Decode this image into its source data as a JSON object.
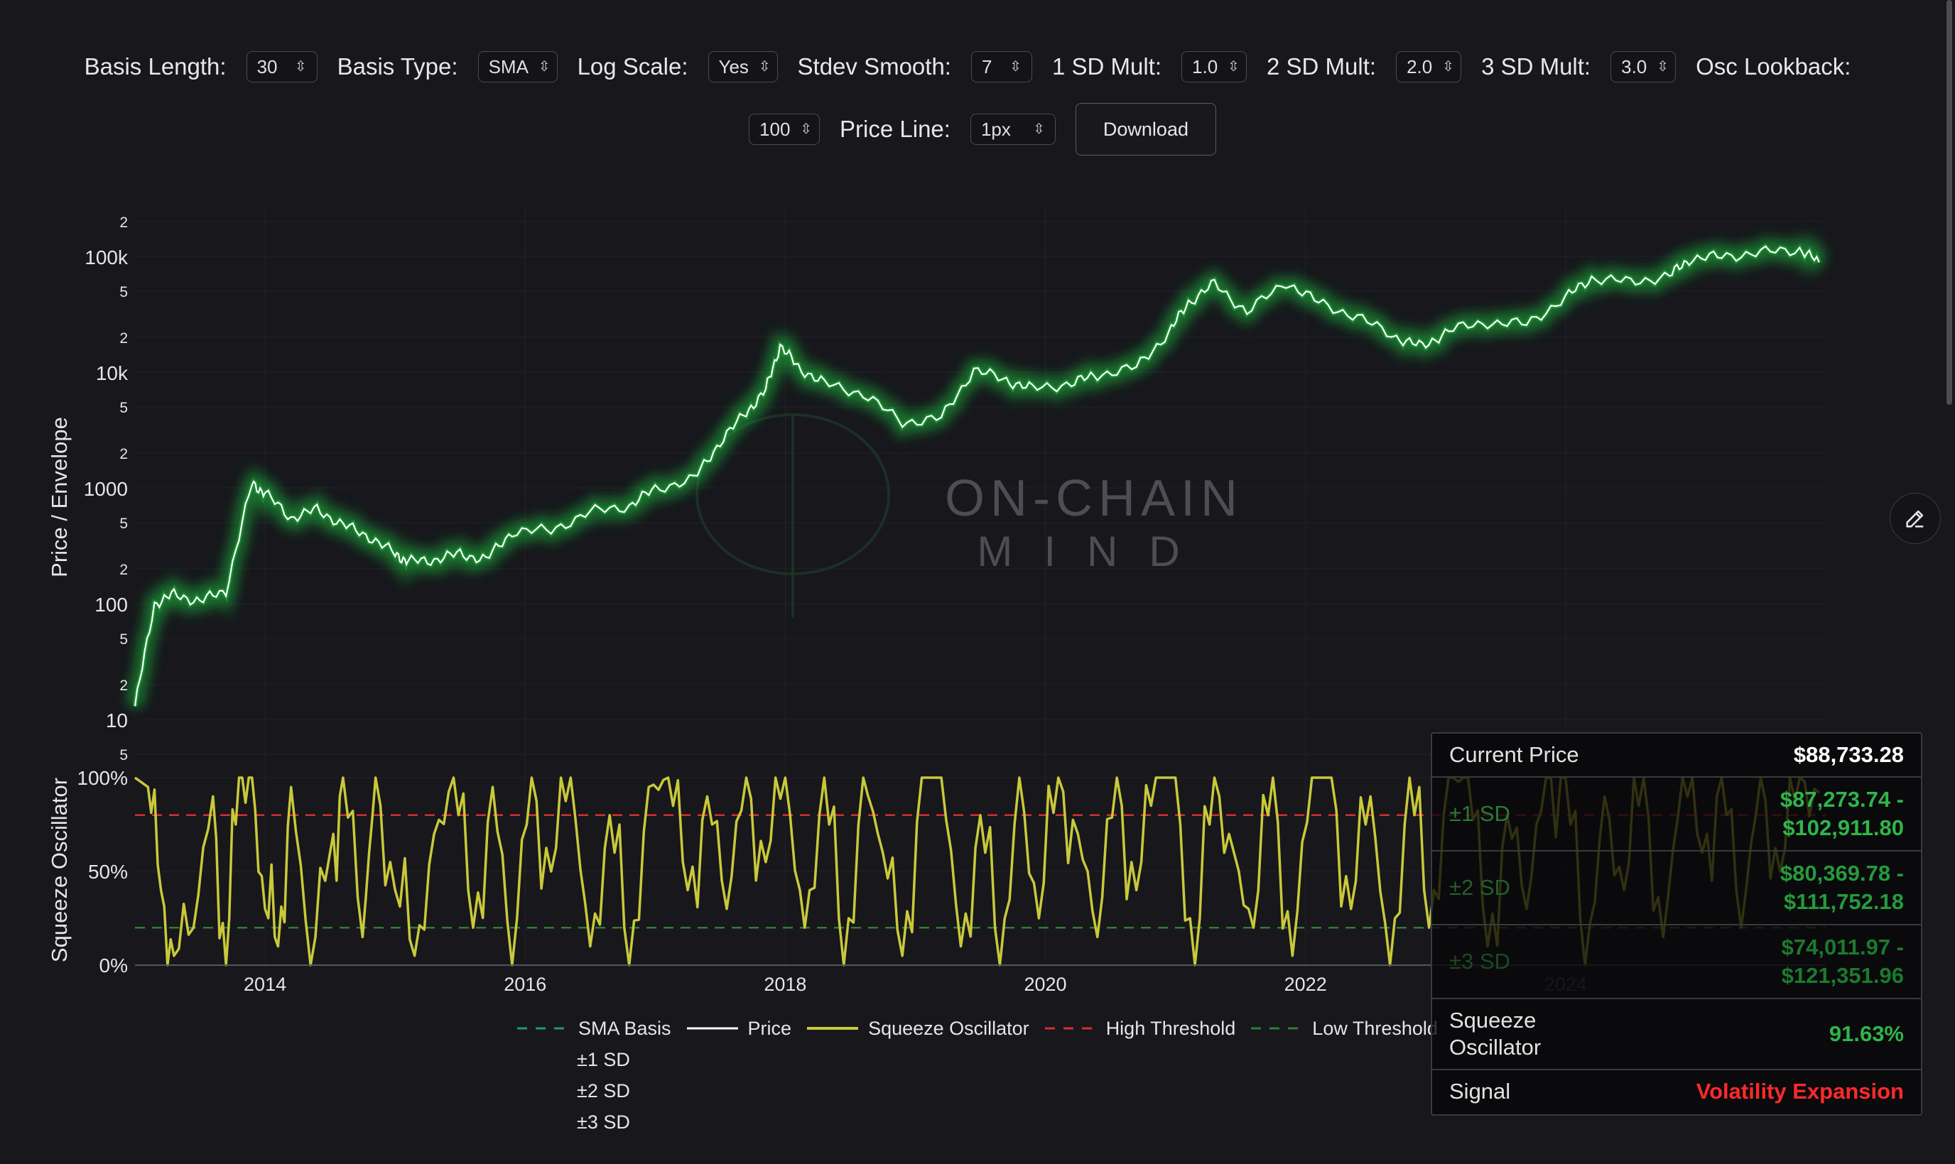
{
  "controls": {
    "basis_length": {
      "label": "Basis Length:",
      "value": "30"
    },
    "basis_type": {
      "label": "Basis Type:",
      "value": "SMA"
    },
    "log_scale": {
      "label": "Log Scale:",
      "value": "Yes"
    },
    "stdev_smooth": {
      "label": "Stdev Smooth:",
      "value": "7"
    },
    "sd1_mult": {
      "label": "1 SD Mult:",
      "value": "1.0"
    },
    "sd2_mult": {
      "label": "2 SD Mult:",
      "value": "2.0"
    },
    "sd3_mult": {
      "label": "3 SD Mult:",
      "value": "3.0"
    },
    "osc_lookback": {
      "label": "Osc Lookback:",
      "value": "100"
    },
    "price_line": {
      "label": "Price Line:",
      "value": "1px"
    },
    "download_label": "Download"
  },
  "watermark": {
    "line1": "ON-CHAIN",
    "line2": "MIND"
  },
  "legend": {
    "sma_basis": "SMA Basis",
    "price": "Price",
    "squeeze_oscillator": "Squeeze Oscillator",
    "high_threshold": "High Threshold",
    "low_threshold": "Low Threshold",
    "sd1": "±1 SD",
    "sd2": "±2 SD",
    "sd3": "±3 SD"
  },
  "info_panel": {
    "current_price_label": "Current Price",
    "current_price_value": "$88,733.28",
    "sd1_label": "±1 SD",
    "sd1_value_line1": "$87,273.74 -",
    "sd1_value_line2": "$102,911.80",
    "sd2_label": "±2 SD",
    "sd2_value_line1": "$80,369.78 -",
    "sd2_value_line2": "$111,752.18",
    "sd3_label": "±3 SD",
    "sd3_value_line1": "$74,011.97 -",
    "sd3_value_line2": "$121,351.96",
    "squeeze_label_line1": "Squeeze",
    "squeeze_label_line2": "Oscillator",
    "squeeze_value": "91.63%",
    "signal_label": "Signal",
    "signal_value": "Volatility Expansion"
  },
  "colors": {
    "background": "#17171c",
    "price_line": "#ffffff",
    "envelope_green": "#1fa83a",
    "oscillator": "#c9c93a",
    "high_threshold": "#d43030",
    "low_threshold": "#2e7d32",
    "signal_red": "#ff2a2a",
    "value_green": "#2fb54a"
  },
  "icons": {
    "edit": "pencil-icon",
    "select_chevron": "updown-chevron-icon"
  },
  "chart_data": [
    {
      "type": "line",
      "ylabel": "Price / Envelope",
      "yscale": "log",
      "y_ticks": [
        "5",
        "10",
        "2",
        "5",
        "100",
        "2",
        "5",
        "1000",
        "2",
        "5",
        "10k",
        "2",
        "5",
        "100k",
        "2"
      ],
      "x_ticks": [
        "2014",
        "2016",
        "2018",
        "2020",
        "2022",
        "2024"
      ],
      "series": [
        {
          "name": "Price",
          "x": [
            2013.0,
            2013.15,
            2013.3,
            2013.5,
            2013.7,
            2013.9,
            2014.0,
            2014.2,
            2014.4,
            2014.6,
            2014.8,
            2015.0,
            2015.1,
            2015.3,
            2015.5,
            2015.7,
            2015.9,
            2016.2,
            2016.5,
            2016.8,
            2017.0,
            2017.3,
            2017.5,
            2017.7,
            2017.85,
            2017.96,
            2018.1,
            2018.3,
            2018.6,
            2018.9,
            2019.2,
            2019.45,
            2019.7,
            2019.9,
            2020.2,
            2020.4,
            2020.7,
            2020.95,
            2021.1,
            2021.3,
            2021.55,
            2021.85,
            2022.1,
            2022.4,
            2022.7,
            2022.9,
            2023.1,
            2023.4,
            2023.7,
            2024.0,
            2024.2,
            2024.5,
            2024.8,
            2024.95,
            2025.2,
            2025.5,
            2025.8,
            2025.95
          ],
          "values": [
            13,
            100,
            120,
            105,
            130,
            1100,
            900,
            550,
            650,
            480,
            380,
            270,
            230,
            240,
            270,
            240,
            420,
            430,
            620,
            700,
            980,
            1200,
            2500,
            4500,
            7000,
            17000,
            11000,
            8000,
            6500,
            3700,
            4000,
            10500,
            8500,
            7200,
            8000,
            9500,
            11000,
            22000,
            40000,
            58000,
            33000,
            60000,
            40000,
            30000,
            20000,
            16500,
            23000,
            27000,
            26000,
            44000,
            65000,
            60000,
            68000,
            95000,
            100000,
            108000,
            115000,
            88733
          ]
        }
      ]
    },
    {
      "type": "line",
      "ylabel": "Squeeze Oscillator",
      "y_ticks": [
        "0%",
        "50%",
        "100%"
      ],
      "ylim": [
        0,
        100
      ],
      "high_threshold": 80,
      "low_threshold": 20,
      "series": [
        {
          "name": "Squeeze Oscillator",
          "x": [
            2013.0,
            2013.1,
            2013.2,
            2013.3,
            2013.45,
            2013.6,
            2013.7,
            2013.8,
            2013.9,
            2014.0,
            2014.1,
            2014.2,
            2014.35,
            2014.5,
            2014.6,
            2014.75,
            2014.85,
            2015.0,
            2015.15,
            2015.3,
            2015.45,
            2015.6,
            2015.75,
            2015.9,
            2016.05,
            2016.2,
            2016.35,
            2016.5,
            2016.65,
            2016.8,
            2016.95,
            2017.1,
            2017.25,
            2017.4,
            2017.55,
            2017.7,
            2017.85,
            2018.0,
            2018.15,
            2018.3,
            2018.45,
            2018.6,
            2018.75,
            2018.9,
            2019.05,
            2019.2,
            2019.35,
            2019.5,
            2019.65,
            2019.8,
            2019.95,
            2020.1,
            2020.25,
            2020.4,
            2020.55,
            2020.7,
            2020.85,
            2021.0,
            2021.15,
            2021.3,
            2021.45,
            2021.6,
            2021.75,
            2021.9,
            2022.05,
            2022.2,
            2022.35,
            2022.5,
            2022.65,
            2022.8,
            2022.95,
            2023.1,
            2023.25,
            2023.4,
            2023.55,
            2023.7,
            2023.85,
            2024.0,
            2024.15,
            2024.3,
            2024.45,
            2024.6,
            2024.75,
            2024.9,
            2025.05,
            2025.2,
            2025.35,
            2025.5,
            2025.65,
            2025.8,
            2025.95
          ],
          "values": [
            100,
            95,
            40,
            5,
            20,
            90,
            0,
            100,
            100,
            30,
            10,
            95,
            0,
            60,
            100,
            15,
            100,
            40,
            5,
            70,
            100,
            20,
            95,
            0,
            100,
            50,
            100,
            10,
            80,
            0,
            95,
            100,
            40,
            90,
            30,
            100,
            55,
            100,
            20,
            100,
            0,
            100,
            60,
            5,
            100,
            100,
            10,
            80,
            0,
            100,
            25,
            100,
            70,
            15,
            100,
            40,
            100,
            100,
            0,
            100,
            60,
            20,
            100,
            5,
            100,
            100,
            30,
            90,
            0,
            100,
            20,
            100,
            100,
            10,
            80,
            30,
            100,
            100,
            0,
            90,
            40,
            100,
            15,
            100,
            60,
            100,
            20,
            100,
            50,
            100,
            92
          ]
        }
      ]
    }
  ]
}
